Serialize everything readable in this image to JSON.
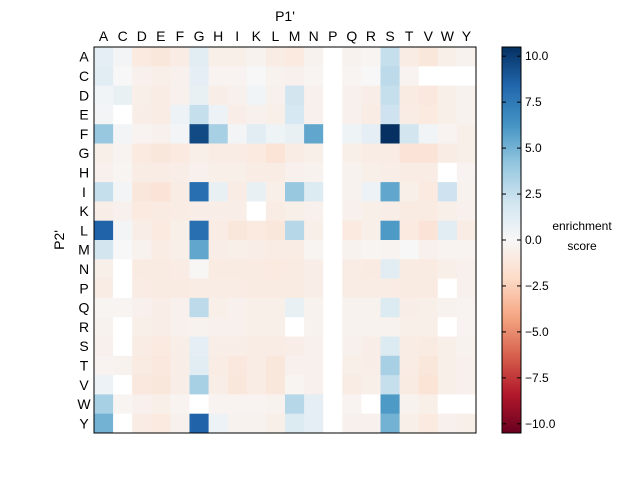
{
  "chart_data": {
    "type": "heatmap",
    "title": "",
    "xlabel": "P1'",
    "ylabel": "P2'",
    "x_categories": [
      "A",
      "C",
      "D",
      "E",
      "F",
      "G",
      "H",
      "I",
      "K",
      "L",
      "M",
      "N",
      "P",
      "Q",
      "R",
      "S",
      "T",
      "V",
      "W",
      "Y"
    ],
    "y_categories": [
      "A",
      "C",
      "D",
      "E",
      "F",
      "G",
      "H",
      "I",
      "K",
      "L",
      "M",
      "N",
      "P",
      "Q",
      "R",
      "S",
      "T",
      "V",
      "W",
      "Y"
    ],
    "value_range": [
      -10.5,
      10.5
    ],
    "colorscale": "RdBu",
    "missing_color": "#ffffff",
    "colorbar": {
      "label_line1": "enrichment",
      "label_line2": "score",
      "ticks": [
        10.0,
        7.5,
        5.0,
        2.5,
        0.0,
        -2.5,
        -5.0,
        -7.5,
        -10.0
      ],
      "tick_labels": [
        "10.0",
        "7.5",
        "5.0",
        "2.5",
        "0.0",
        "−2.5",
        "−5.0",
        "−7.5",
        "−10.0"
      ]
    },
    "values": [
      [
        1.0,
        0.3,
        -1.0,
        -1.2,
        -0.8,
        1.2,
        -0.6,
        -0.6,
        -0.4,
        -0.8,
        -1.0,
        -0.4,
        null,
        -0.4,
        -0.2,
        2.5,
        -0.8,
        -1.2,
        -0.6,
        -0.4
      ],
      [
        1.2,
        0.0,
        -0.5,
        -0.6,
        -0.5,
        1.0,
        -0.3,
        -0.3,
        0.0,
        -0.4,
        -0.5,
        -0.2,
        null,
        -0.2,
        0.0,
        2.8,
        -0.3,
        null,
        null,
        null
      ],
      [
        0.4,
        0.8,
        -0.6,
        -0.8,
        -0.5,
        0.8,
        -0.7,
        -0.5,
        0.4,
        -0.5,
        2.0,
        -0.5,
        null,
        -0.5,
        -0.7,
        2.5,
        -0.9,
        -1.1,
        -0.6,
        -0.4
      ],
      [
        0.3,
        null,
        -0.7,
        -0.8,
        0.6,
        2.5,
        0.6,
        -0.7,
        -0.5,
        -0.6,
        1.8,
        -0.5,
        null,
        -0.5,
        -0.8,
        2.2,
        -0.8,
        -1.0,
        -0.6,
        -0.4
      ],
      [
        4.0,
        0.3,
        -0.3,
        -0.5,
        0.3,
        9.5,
        3.5,
        0.3,
        1.2,
        0.5,
        0.8,
        5.5,
        null,
        0.5,
        1.0,
        10.5,
        2.0,
        0.4,
        -0.3,
        -0.6
      ],
      [
        -0.6,
        -0.3,
        -1.0,
        -1.2,
        -1.0,
        -0.6,
        -0.8,
        -0.8,
        -1.0,
        -1.5,
        -0.8,
        -0.6,
        null,
        -0.6,
        -0.8,
        -0.8,
        -1.4,
        -1.4,
        -0.8,
        -0.6
      ],
      [
        -0.5,
        -0.2,
        -0.8,
        -0.8,
        -0.7,
        -0.5,
        -0.6,
        -0.6,
        -0.8,
        -0.8,
        -0.5,
        -0.4,
        null,
        -0.4,
        -0.6,
        -0.7,
        -0.8,
        -0.8,
        null,
        -0.3
      ],
      [
        2.5,
        0.3,
        -1.2,
        -1.4,
        -0.8,
        8.0,
        0.8,
        -0.8,
        0.8,
        -0.6,
        4.0,
        1.5,
        null,
        -0.4,
        0.6,
        5.5,
        -0.6,
        -1.0,
        2.2,
        -0.4
      ],
      [
        -0.7,
        -0.5,
        -1.0,
        -0.9,
        -0.8,
        -0.7,
        -0.7,
        -0.7,
        null,
        -0.8,
        -0.6,
        -0.5,
        null,
        -0.5,
        -0.6,
        -0.7,
        -0.9,
        -0.9,
        -0.6,
        -0.5
      ],
      [
        8.5,
        0.3,
        -0.7,
        -1.0,
        -0.6,
        8.0,
        -0.8,
        -1.2,
        -1.0,
        -1.2,
        3.0,
        -0.6,
        null,
        -1.0,
        -0.6,
        6.0,
        -1.0,
        -1.4,
        1.2,
        -0.8
      ],
      [
        2.0,
        0.0,
        -0.4,
        -0.8,
        -0.6,
        5.5,
        -0.7,
        -0.6,
        -0.7,
        -0.8,
        -0.8,
        -0.2,
        null,
        -0.4,
        -0.2,
        -0.3,
        0.0,
        -0.5,
        -0.3,
        -0.3
      ],
      [
        -0.6,
        null,
        -0.9,
        -0.9,
        -0.8,
        -0.1,
        -0.9,
        -0.9,
        -0.9,
        -1.0,
        -0.9,
        -0.7,
        null,
        -0.8,
        -0.9,
        1.2,
        -0.9,
        -0.9,
        -0.6,
        -0.5
      ],
      [
        -0.8,
        null,
        -0.8,
        -0.9,
        -0.9,
        -0.8,
        -0.8,
        -0.8,
        -0.9,
        -0.9,
        -0.9,
        -0.7,
        null,
        -0.8,
        -0.8,
        -0.8,
        -0.9,
        -0.9,
        null,
        -0.5
      ],
      [
        -0.2,
        -0.2,
        -0.5,
        -0.7,
        -0.5,
        2.8,
        -0.6,
        -0.5,
        -0.6,
        -0.6,
        0.8,
        -0.4,
        null,
        -0.4,
        -0.4,
        1.5,
        -0.7,
        -0.6,
        -0.4,
        -0.3
      ],
      [
        -0.4,
        null,
        -0.6,
        -0.7,
        -0.5,
        -0.4,
        -0.5,
        -0.5,
        -0.6,
        -0.6,
        null,
        -0.4,
        null,
        -0.4,
        -0.4,
        -0.4,
        -0.6,
        -0.6,
        null,
        -0.3
      ],
      [
        -0.5,
        null,
        -0.8,
        -1.0,
        -0.7,
        1.0,
        -0.7,
        -0.7,
        -0.8,
        -0.8,
        -0.7,
        -0.5,
        null,
        -0.5,
        -0.7,
        1.5,
        -0.8,
        -0.9,
        -0.6,
        -0.4
      ],
      [
        -0.3,
        -0.4,
        -0.9,
        -1.1,
        -0.7,
        1.2,
        -0.8,
        -1.1,
        -0.8,
        -1.2,
        -0.5,
        -0.5,
        null,
        -0.6,
        -0.7,
        3.5,
        -0.8,
        -1.2,
        -0.6,
        -0.5
      ],
      [
        0.6,
        null,
        -1.1,
        -1.2,
        -0.7,
        3.5,
        -0.7,
        -1.2,
        -0.8,
        -1.2,
        -0.2,
        -0.5,
        null,
        -0.8,
        -0.6,
        2.5,
        -0.9,
        -1.5,
        -0.6,
        -0.5
      ],
      [
        3.5,
        -0.2,
        -0.5,
        -0.6,
        -0.3,
        null,
        -0.3,
        -0.3,
        -0.3,
        -0.4,
        3.0,
        1.0,
        null,
        -0.3,
        null,
        6.0,
        -0.4,
        -0.6,
        null,
        null
      ],
      [
        5.0,
        null,
        -0.8,
        -1.0,
        -0.5,
        8.5,
        0.6,
        -0.4,
        -0.4,
        -0.6,
        1.5,
        1.0,
        null,
        -0.5,
        -0.5,
        5.0,
        -0.6,
        -1.0,
        -0.5,
        -0.6
      ]
    ]
  }
}
